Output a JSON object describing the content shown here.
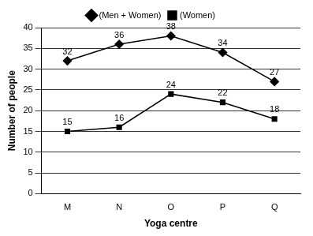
{
  "chart_data": {
    "type": "line",
    "x_label": "Yoga centre",
    "y_label": "Number of people",
    "categories": [
      "M",
      "N",
      "O",
      "P",
      "Q"
    ],
    "series": [
      {
        "name": "(Men + Women)",
        "color": "#000000",
        "marker": "diamond",
        "values": [
          32,
          36,
          38,
          34,
          27
        ]
      },
      {
        "name": "(Women)",
        "color": "#000000",
        "marker": "square",
        "values": [
          15,
          16,
          24,
          22,
          18
        ]
      }
    ],
    "ylim": [
      0,
      40
    ],
    "yticks": [
      0,
      5,
      10,
      15,
      20,
      25,
      30,
      35,
      40
    ],
    "grid": true,
    "legend": "top",
    "data_labels": true
  }
}
